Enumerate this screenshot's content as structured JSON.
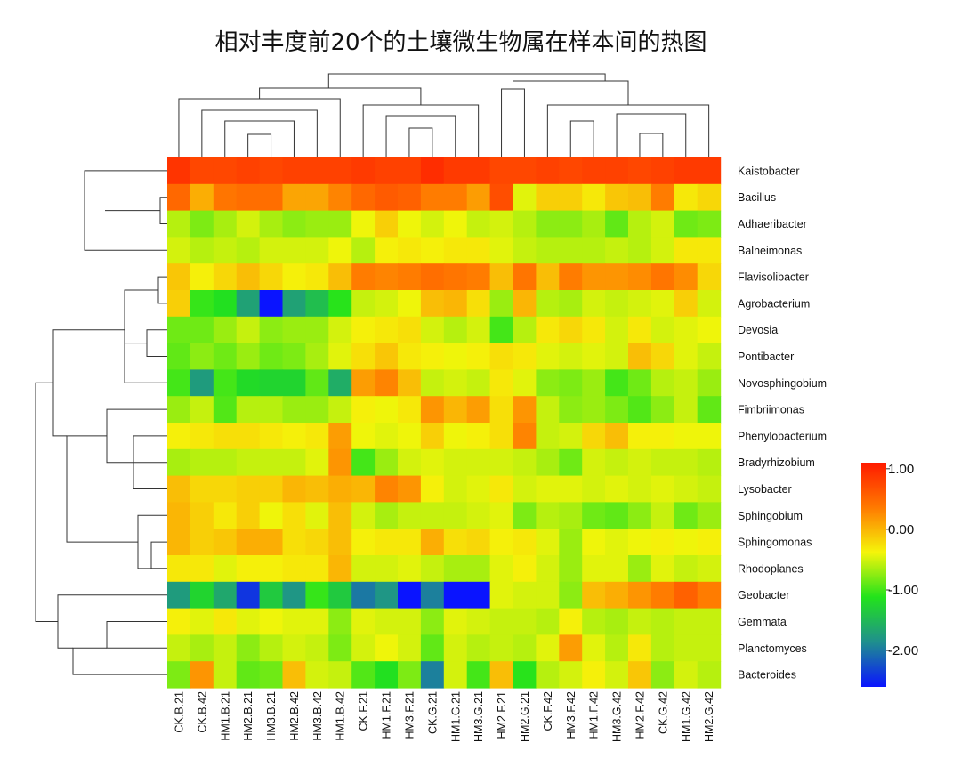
{
  "chart_data": {
    "type": "heatmap",
    "title": "相对丰度前20个的土壤微生物属在样本间的热图",
    "columns": [
      "CK.B.21",
      "CK.B.42",
      "HM1.B.21",
      "HM2.B.21",
      "HM3.B.21",
      "HM2.B.42",
      "HM3.B.42",
      "HM1.B.42",
      "CK.F.21",
      "HM1.F.21",
      "HM3.F.21",
      "CK.G.21",
      "HM1.G.21",
      "HM3.G.21",
      "HM2.F.21",
      "HM2.G.21",
      "CK.F.42",
      "HM3.F.42",
      "HM1.F.42",
      "HM3.G.42",
      "HM2.F.42",
      "CK.G.42",
      "HM1.G.42",
      "HM2.G.42"
    ],
    "rows": [
      "Kaistobacter",
      "Bacillus",
      "Adhaeribacter",
      "Balneimonas",
      "Flavisolibacter",
      "Agrobacterium",
      "Devosia",
      "Pontibacter",
      "Novosphingobium",
      "Fimbriimonas",
      "Phenylobacterium",
      "Bradyrhizobium",
      "Lysobacter",
      "Sphingobium",
      "Sphingomonas",
      "Rhodoplanes",
      "Geobacter",
      "Gemmata",
      "Planctomyces",
      "Bacteroides"
    ],
    "values": [
      [
        0.9,
        0.75,
        0.75,
        0.8,
        0.75,
        0.8,
        0.8,
        0.8,
        0.85,
        0.8,
        0.8,
        0.95,
        0.85,
        0.85,
        0.75,
        0.75,
        0.8,
        0.75,
        0.8,
        0.8,
        0.75,
        0.8,
        0.85,
        0.85
      ],
      [
        0.5,
        0.05,
        0.4,
        0.45,
        0.45,
        0.1,
        0.1,
        0.3,
        0.5,
        0.6,
        0.55,
        0.35,
        0.35,
        0.15,
        0.7,
        -0.45,
        -0.15,
        -0.15,
        -0.3,
        -0.1,
        -0.05,
        0.35,
        -0.3,
        -0.2
      ],
      [
        -0.6,
        -0.8,
        -0.65,
        -0.5,
        -0.65,
        -0.75,
        -0.7,
        -0.7,
        -0.4,
        -0.15,
        -0.4,
        -0.5,
        -0.4,
        -0.55,
        -0.5,
        -0.6,
        -0.75,
        -0.75,
        -0.65,
        -0.9,
        -0.6,
        -0.5,
        -0.85,
        -0.8
      ],
      [
        -0.5,
        -0.6,
        -0.55,
        -0.6,
        -0.5,
        -0.5,
        -0.5,
        -0.4,
        -0.6,
        -0.35,
        -0.3,
        -0.35,
        -0.3,
        -0.3,
        -0.45,
        -0.55,
        -0.6,
        -0.6,
        -0.6,
        -0.55,
        -0.6,
        -0.5,
        -0.3,
        -0.3
      ],
      [
        -0.1,
        -0.35,
        -0.2,
        -0.05,
        -0.2,
        -0.35,
        -0.3,
        -0.05,
        0.35,
        0.3,
        0.35,
        0.45,
        0.4,
        0.35,
        -0.05,
        0.4,
        -0.05,
        0.35,
        0.2,
        0.2,
        0.25,
        0.4,
        0.25,
        -0.2
      ],
      [
        -0.15,
        -1.05,
        -1.15,
        -1.7,
        -2.6,
        -1.7,
        -1.45,
        -1.1,
        -0.55,
        -0.5,
        -0.4,
        -0.05,
        0.0,
        -0.25,
        -0.7,
        0.0,
        -0.6,
        -0.65,
        -0.5,
        -0.55,
        -0.5,
        -0.45,
        -0.15,
        -0.5
      ],
      [
        -0.85,
        -0.85,
        -0.7,
        -0.55,
        -0.75,
        -0.7,
        -0.7,
        -0.5,
        -0.35,
        -0.3,
        -0.25,
        -0.5,
        -0.6,
        -0.5,
        -1.0,
        -0.6,
        -0.3,
        -0.2,
        -0.3,
        -0.5,
        -0.3,
        -0.5,
        -0.45,
        -0.4
      ],
      [
        -0.9,
        -0.75,
        -0.85,
        -0.7,
        -0.85,
        -0.8,
        -0.65,
        -0.45,
        -0.25,
        -0.1,
        -0.3,
        -0.35,
        -0.4,
        -0.35,
        -0.25,
        -0.3,
        -0.45,
        -0.5,
        -0.45,
        -0.5,
        -0.05,
        -0.2,
        -0.45,
        -0.55
      ],
      [
        -1.0,
        -1.75,
        -1.0,
        -1.2,
        -1.25,
        -1.25,
        -0.9,
        -1.6,
        0.15,
        0.3,
        -0.05,
        -0.55,
        -0.5,
        -0.55,
        -0.3,
        -0.45,
        -0.75,
        -0.8,
        -0.7,
        -1.0,
        -0.85,
        -0.6,
        -0.55,
        -0.7
      ],
      [
        -0.7,
        -0.55,
        -0.95,
        -0.6,
        -0.6,
        -0.7,
        -0.7,
        -0.55,
        -0.35,
        -0.4,
        -0.3,
        0.2,
        0.0,
        0.15,
        -0.25,
        0.2,
        -0.55,
        -0.75,
        -0.7,
        -0.8,
        -0.95,
        -0.75,
        -0.55,
        -0.9
      ],
      [
        -0.35,
        -0.3,
        -0.25,
        -0.25,
        -0.3,
        -0.35,
        -0.3,
        0.15,
        -0.4,
        -0.45,
        -0.4,
        -0.15,
        -0.4,
        -0.35,
        -0.25,
        0.3,
        -0.55,
        -0.5,
        -0.2,
        -0.05,
        -0.35,
        -0.35,
        -0.4,
        -0.4
      ],
      [
        -0.65,
        -0.6,
        -0.6,
        -0.55,
        -0.55,
        -0.55,
        -0.45,
        0.2,
        -1.0,
        -0.7,
        -0.5,
        -0.45,
        -0.5,
        -0.5,
        -0.5,
        -0.55,
        -0.65,
        -0.85,
        -0.5,
        -0.55,
        -0.5,
        -0.55,
        -0.55,
        -0.6
      ],
      [
        -0.05,
        -0.2,
        -0.2,
        -0.15,
        -0.15,
        0.0,
        -0.05,
        0.05,
        0.0,
        0.3,
        0.2,
        -0.35,
        -0.5,
        -0.45,
        -0.3,
        -0.5,
        -0.45,
        -0.45,
        -0.5,
        -0.45,
        -0.5,
        -0.45,
        -0.5,
        -0.55
      ],
      [
        0.0,
        -0.15,
        -0.3,
        -0.15,
        -0.4,
        -0.25,
        -0.45,
        -0.05,
        -0.5,
        -0.65,
        -0.55,
        -0.55,
        -0.55,
        -0.5,
        -0.45,
        -0.8,
        -0.6,
        -0.65,
        -0.85,
        -0.9,
        -0.75,
        -0.55,
        -0.85,
        -0.7
      ],
      [
        0.0,
        -0.15,
        -0.1,
        0.05,
        0.05,
        -0.25,
        -0.2,
        -0.05,
        -0.35,
        -0.3,
        -0.3,
        0.05,
        -0.25,
        -0.2,
        -0.35,
        -0.3,
        -0.45,
        -0.7,
        -0.4,
        -0.45,
        -0.4,
        -0.35,
        -0.4,
        -0.35
      ],
      [
        -0.3,
        -0.3,
        -0.45,
        -0.35,
        -0.35,
        -0.3,
        -0.3,
        0.0,
        -0.5,
        -0.5,
        -0.45,
        -0.55,
        -0.65,
        -0.65,
        -0.45,
        -0.35,
        -0.5,
        -0.7,
        -0.45,
        -0.45,
        -0.7,
        -0.45,
        -0.55,
        -0.5
      ],
      [
        -1.75,
        -1.25,
        -1.65,
        -2.4,
        -1.35,
        -1.8,
        -1.05,
        -1.35,
        -2.0,
        -1.8,
        -2.6,
        -1.95,
        -2.65,
        -2.6,
        -0.45,
        -0.5,
        -0.5,
        -0.75,
        -0.05,
        0.05,
        0.2,
        0.35,
        0.55,
        0.35
      ],
      [
        -0.35,
        -0.45,
        -0.3,
        -0.45,
        -0.4,
        -0.45,
        -0.45,
        -0.75,
        -0.45,
        -0.5,
        -0.5,
        -0.75,
        -0.45,
        -0.5,
        -0.55,
        -0.55,
        -0.6,
        -0.35,
        -0.6,
        -0.65,
        -0.55,
        -0.6,
        -0.55,
        -0.55
      ],
      [
        -0.55,
        -0.65,
        -0.55,
        -0.75,
        -0.6,
        -0.5,
        -0.55,
        -0.8,
        -0.5,
        -0.4,
        -0.5,
        -0.9,
        -0.5,
        -0.6,
        -0.55,
        -0.6,
        -0.45,
        0.15,
        -0.45,
        -0.6,
        -0.3,
        -0.6,
        -0.55,
        -0.55
      ],
      [
        -0.8,
        0.2,
        -0.55,
        -0.9,
        -0.85,
        -0.05,
        -0.5,
        -0.55,
        -0.95,
        -1.15,
        -0.8,
        -1.95,
        -0.5,
        -1.0,
        -0.05,
        -1.1,
        -0.6,
        -0.5,
        -0.35,
        -0.5,
        -0.1,
        -0.75,
        -0.5,
        -0.6
      ]
    ],
    "colorbar": {
      "min": -2.6,
      "max": 1.1,
      "ticks": [
        "1.00",
        "0.00",
        "-1.00",
        "-2.00"
      ],
      "tick_values": [
        1.0,
        0.0,
        -1.0,
        -2.0
      ]
    },
    "colormap": [
      "#0a14ff",
      "#1f8f8e",
      "#22e31b",
      "#f5f50a",
      "#ff7a00",
      "#ff1a00"
    ]
  }
}
